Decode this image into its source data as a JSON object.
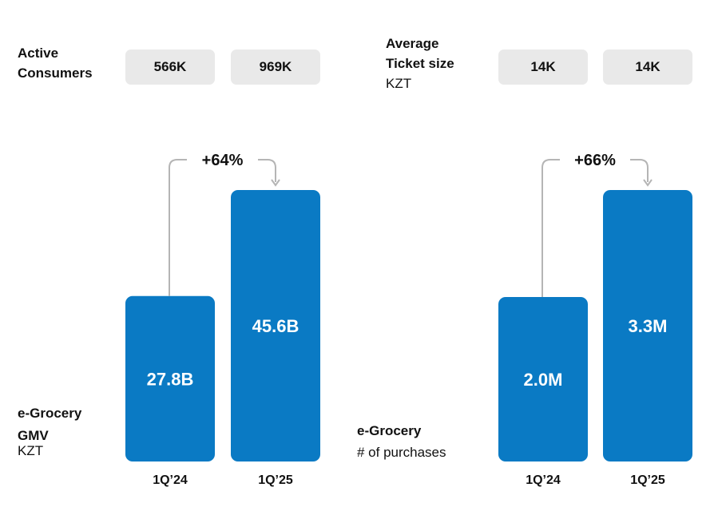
{
  "header_left": {
    "label_line1": "Active",
    "label_line2": "Consumers",
    "values": [
      "566K",
      "969K"
    ]
  },
  "header_right": {
    "label_line1": "Average",
    "label_line2": "Ticket size",
    "label_unit": "KZT",
    "values": [
      "14K",
      "14K"
    ]
  },
  "chart_data": [
    {
      "type": "bar",
      "title": "e-Grocery GMV",
      "title_line1": "e-Grocery",
      "title_line2": "GMV",
      "unit": "KZT",
      "categories": [
        "1Q’24",
        "1Q’25"
      ],
      "values": [
        27.8,
        45.6
      ],
      "value_unit": "B",
      "data_labels": [
        "27.8B",
        "45.6B"
      ],
      "growth_label": "+64%",
      "color": "#0a7ac4"
    },
    {
      "type": "bar",
      "title": "e-Grocery # of purchases",
      "title_line1": "e-Grocery",
      "title_line2": "# of purchases",
      "categories": [
        "1Q’24",
        "1Q’25"
      ],
      "values": [
        2.0,
        3.3
      ],
      "value_unit": "M",
      "data_labels": [
        "2.0M",
        "3.3M"
      ],
      "growth_label": "+66%",
      "color": "#0a7ac4"
    }
  ]
}
